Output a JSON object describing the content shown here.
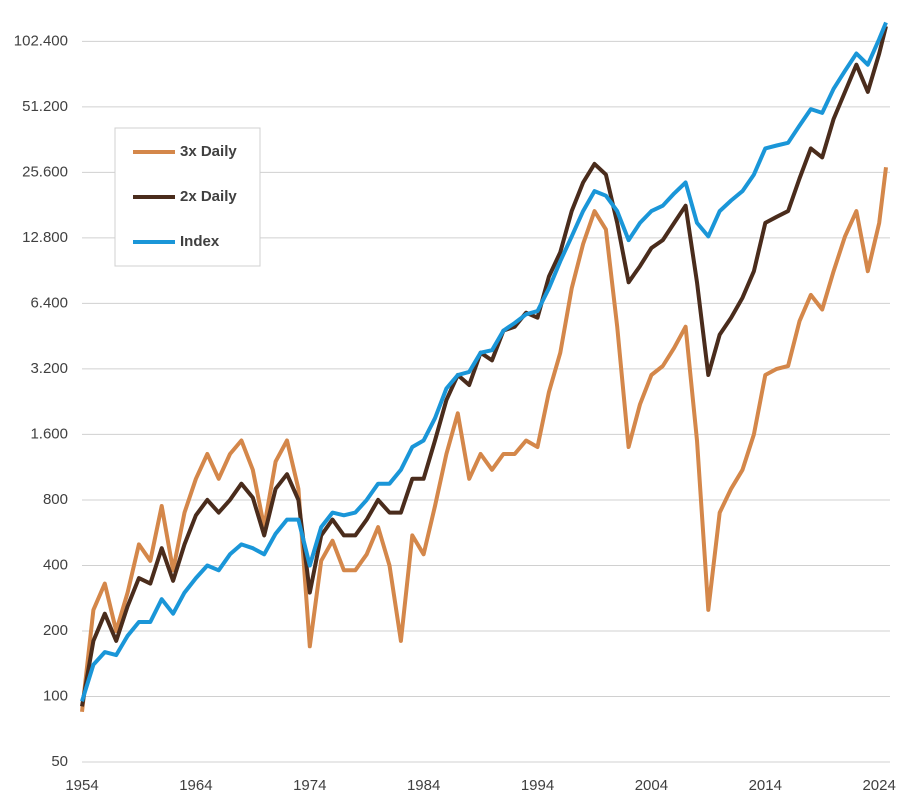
{
  "chart_data": {
    "type": "line",
    "log_scale": true,
    "grid": true,
    "legend": "upper left",
    "x": [
      1954,
      1955,
      1956,
      1957,
      1958,
      1959,
      1960,
      1961,
      1962,
      1963,
      1964,
      1965,
      1966,
      1967,
      1968,
      1969,
      1970,
      1971,
      1972,
      1973,
      1974,
      1975,
      1976,
      1977,
      1978,
      1979,
      1980,
      1981,
      1982,
      1983,
      1984,
      1985,
      1986,
      1987,
      1988,
      1989,
      1990,
      1991,
      1992,
      1993,
      1994,
      1995,
      1996,
      1997,
      1998,
      1999,
      2000,
      2001,
      2002,
      2003,
      2004,
      2005,
      2006,
      2007,
      2008,
      2009,
      2010,
      2011,
      2012,
      2013,
      2014,
      2015,
      2016,
      2017,
      2018,
      2019,
      2020,
      2021,
      2022,
      2023,
      2024,
      2024.6
    ],
    "series": [
      {
        "name": "3x Daily",
        "color": "#d4874a",
        "values": [
          85,
          250,
          330,
          200,
          300,
          500,
          420,
          750,
          380,
          700,
          1000,
          1300,
          1000,
          1300,
          1500,
          1100,
          600,
          1200,
          1500,
          900,
          170,
          420,
          520,
          380,
          380,
          450,
          600,
          400,
          180,
          550,
          450,
          750,
          1300,
          2000,
          1000,
          1300,
          1100,
          1300,
          1300,
          1500,
          1400,
          2500,
          3800,
          7500,
          12000,
          17000,
          14000,
          5000,
          1400,
          2200,
          3000,
          3300,
          4000,
          5000,
          1500,
          250,
          700,
          900,
          1100,
          1600,
          3000,
          3200,
          3300,
          5300,
          7000,
          6000,
          9000,
          13000,
          17000,
          9000,
          15000,
          27000
        ]
      },
      {
        "name": "2x Daily",
        "color": "#4a2c1c",
        "values": [
          90,
          180,
          240,
          180,
          260,
          350,
          330,
          480,
          340,
          500,
          680,
          800,
          700,
          800,
          950,
          820,
          550,
          900,
          1050,
          800,
          300,
          550,
          650,
          550,
          550,
          650,
          800,
          700,
          700,
          1000,
          1000,
          1500,
          2300,
          3000,
          2700,
          3800,
          3500,
          4800,
          5000,
          5800,
          5500,
          8500,
          11000,
          17000,
          23000,
          28000,
          25000,
          15000,
          8000,
          9500,
          11500,
          12500,
          15000,
          18000,
          8000,
          3000,
          4600,
          5500,
          6800,
          9000,
          15000,
          16000,
          17000,
          24000,
          33000,
          30000,
          45000,
          60000,
          80000,
          60000,
          90000,
          120000
        ]
      },
      {
        "name": "Index",
        "color": "#1a96d8",
        "values": [
          95,
          140,
          160,
          155,
          190,
          220,
          220,
          280,
          240,
          300,
          350,
          400,
          380,
          450,
          500,
          480,
          450,
          560,
          650,
          650,
          400,
          600,
          700,
          680,
          700,
          800,
          950,
          950,
          1100,
          1400,
          1500,
          1900,
          2600,
          3000,
          3100,
          3800,
          3900,
          4800,
          5200,
          5700,
          5900,
          7500,
          10000,
          13000,
          17000,
          21000,
          20000,
          17000,
          12500,
          15000,
          17000,
          18000,
          20500,
          23000,
          15000,
          13000,
          17000,
          19000,
          21000,
          25000,
          33000,
          34000,
          35000,
          42000,
          50000,
          48000,
          62000,
          75000,
          90000,
          80000,
          105000,
          125000
        ]
      }
    ],
    "xlim": [
      1954,
      2024.6
    ],
    "xticks": [
      1954,
      1964,
      1974,
      1984,
      1994,
      2004,
      2014,
      2024
    ],
    "ylim": [
      50,
      131072
    ],
    "yticks": [
      50,
      100,
      200,
      400,
      800,
      {
        "value": 1600,
        "label": "1.600"
      },
      {
        "value": 3200,
        "label": "3.200"
      },
      {
        "value": 6400,
        "label": "6.400"
      },
      {
        "value": 12800,
        "label": "12.800"
      },
      {
        "value": 25600,
        "label": "25.600"
      },
      {
        "value": 51200,
        "label": "51.200"
      },
      {
        "value": 102400,
        "label": "102.400"
      }
    ]
  }
}
